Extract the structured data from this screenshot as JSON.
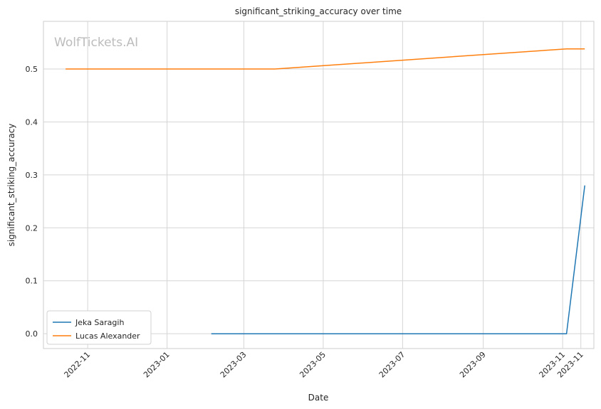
{
  "chart_data": {
    "type": "line",
    "title": "significant_striking_accuracy over time",
    "xlabel": "Date",
    "ylabel": "significant_striking_accuracy",
    "watermark": "WolfTickets.AI",
    "x_ticks": [
      "2022-11",
      "2023-01",
      "2023-03",
      "2023-05",
      "2023-07",
      "2023-09",
      "2023-11",
      "2023-11"
    ],
    "x_tick_dates": [
      "2022-11-01",
      "2023-01-01",
      "2023-03-01",
      "2023-05-01",
      "2023-07-01",
      "2023-09-01",
      "2023-11-01",
      "2023-11-15"
    ],
    "xlim": [
      "2022-09-28",
      "2023-11-25"
    ],
    "y_ticks": [
      "0.0",
      "0.1",
      "0.2",
      "0.3",
      "0.4",
      "0.5"
    ],
    "ylim": [
      -0.028,
      0.59
    ],
    "grid": true,
    "legend_position": "lower-left",
    "series": [
      {
        "name": "Jeka Saragih",
        "color": "#1f77b4",
        "points": [
          {
            "x": "2023-02-04",
            "y": 0.0
          },
          {
            "x": "2023-11-04",
            "y": 0.0
          },
          {
            "x": "2023-11-18",
            "y": 0.28
          }
        ]
      },
      {
        "name": "Lucas Alexander",
        "color": "#ff7f0e",
        "points": [
          {
            "x": "2022-10-15",
            "y": 0.5
          },
          {
            "x": "2023-03-25",
            "y": 0.5
          },
          {
            "x": "2023-11-04",
            "y": 0.538
          },
          {
            "x": "2023-11-18",
            "y": 0.538
          }
        ]
      }
    ]
  }
}
